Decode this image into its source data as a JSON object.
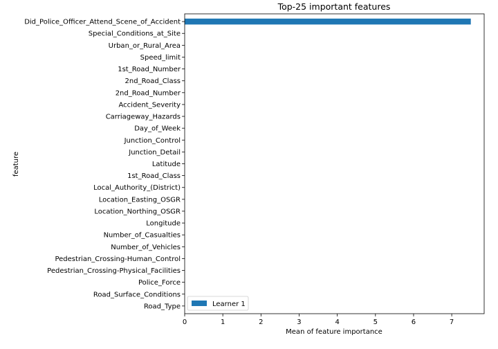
{
  "chart_data": {
    "type": "bar",
    "orientation": "horizontal",
    "title": "Top-25 important features",
    "xlabel": "Mean of feature importance",
    "ylabel": "feature",
    "xlim": [
      0,
      7.85
    ],
    "xticks": [
      0,
      1,
      2,
      3,
      4,
      5,
      6,
      7
    ],
    "grid": false,
    "legend_position": "lower-left",
    "categories": [
      "Did_Police_Officer_Attend_Scene_of_Accident",
      "Special_Conditions_at_Site",
      "Urban_or_Rural_Area",
      "Speed_limit",
      "1st_Road_Number",
      "2nd_Road_Class",
      "2nd_Road_Number",
      "Accident_Severity",
      "Carriageway_Hazards",
      "Day_of_Week",
      "Junction_Control",
      "Junction_Detail",
      "Latitude",
      "1st_Road_Class",
      "Local_Authority_(District)",
      "Location_Easting_OSGR",
      "Location_Northing_OSGR",
      "Longitude",
      "Number_of_Casualties",
      "Number_of_Vehicles",
      "Pedestrian_Crossing-Human_Control",
      "Pedestrian_Crossing-Physical_Facilities",
      "Police_Force",
      "Road_Surface_Conditions",
      "Road_Type"
    ],
    "series": [
      {
        "name": "Learner 1",
        "color": "#1f77b4",
        "values": [
          7.5,
          0,
          0,
          0,
          0,
          0,
          0,
          0,
          0,
          0,
          0,
          0,
          0,
          0,
          0,
          0,
          0,
          0,
          0,
          0,
          0,
          0,
          0,
          0,
          0
        ]
      }
    ]
  }
}
